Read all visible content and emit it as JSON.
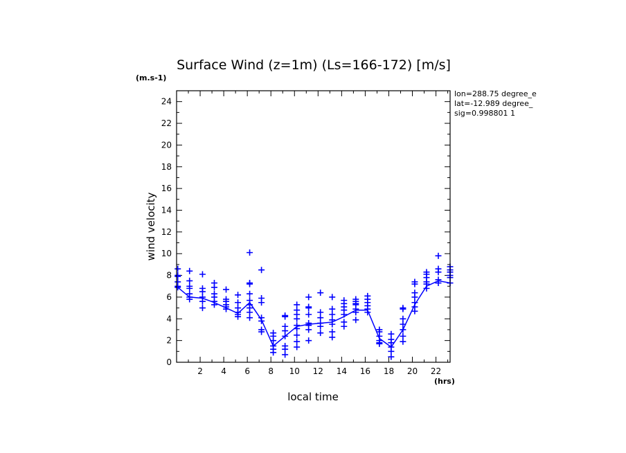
{
  "chart_data": {
    "type": "scatter",
    "title": "Surface Wind (z=1m) (Ls=166-172) [m/s]",
    "y_unit": "(m.s-1)",
    "x_unit": "(hrs)",
    "xlabel": "local time",
    "ylabel": "wind velocity",
    "xlim": [
      0,
      23.2
    ],
    "ylim": [
      0,
      25
    ],
    "xticks": [
      2,
      4,
      6,
      8,
      10,
      12,
      14,
      16,
      18,
      20,
      22
    ],
    "yticks": [
      0,
      2,
      4,
      6,
      8,
      10,
      12,
      14,
      16,
      18,
      20,
      22,
      24
    ],
    "info_lines": [
      "lon=288.75 degree_e",
      "lat=-12.989 degree_",
      "sig=0.998801 1"
    ],
    "mean_line": {
      "x": [
        0.1,
        1.1,
        2.2,
        3.2,
        4.2,
        5.2,
        6.2,
        7.2,
        8.2,
        9.2,
        10.2,
        11.2,
        12.2,
        13.2,
        14.2,
        15.2,
        16.2,
        17.2,
        18.2,
        19.2,
        20.2,
        21.2,
        22.2,
        23.2
      ],
      "y": [
        6.9,
        6.0,
        5.9,
        5.5,
        5.0,
        4.5,
        5.5,
        3.9,
        1.5,
        2.4,
        3.3,
        3.5,
        3.6,
        3.7,
        4.2,
        4.8,
        4.8,
        2.2,
        1.4,
        3.0,
        5.3,
        7.0,
        7.5,
        7.3
      ]
    },
    "points": {
      "x": [
        0.1,
        1.1,
        2.2,
        3.2,
        4.2,
        5.2,
        6.2,
        7.2,
        8.2,
        9.2,
        10.2,
        11.2,
        12.2,
        13.2,
        14.2,
        15.2,
        16.2,
        17.2,
        18.2,
        19.2,
        20.2,
        21.2,
        22.2,
        23.2
      ],
      "y_sets": [
        [
          8.6,
          8.0,
          7.9,
          7.4,
          7.0,
          6.9
        ],
        [
          8.4,
          7.5,
          7.0,
          6.8,
          6.3,
          6.0,
          5.8
        ],
        [
          8.1,
          6.8,
          6.5,
          6.0,
          5.6,
          5.0
        ],
        [
          7.3,
          6.9,
          6.3,
          6.0,
          5.6,
          5.3
        ],
        [
          6.7,
          5.8,
          5.6,
          5.3,
          5.1,
          4.9
        ],
        [
          6.2,
          5.5,
          5.0,
          4.6,
          4.4,
          4.2
        ],
        [
          10.1,
          7.3,
          7.2,
          6.3,
          5.7,
          5.3,
          5.0,
          4.6,
          4.1
        ],
        [
          8.5,
          5.9,
          5.5,
          4.1,
          3.8,
          3.0,
          2.8
        ],
        [
          2.7,
          2.4,
          2.0,
          1.5,
          1.2,
          0.9
        ],
        [
          4.3,
          4.2,
          3.3,
          2.9,
          2.4,
          1.5,
          1.2,
          0.7
        ],
        [
          5.3,
          4.8,
          4.4,
          4.0,
          3.4,
          3.1,
          2.5,
          1.9,
          1.4
        ],
        [
          6.0,
          5.1,
          5.0,
          4.4,
          3.6,
          3.4,
          3.0,
          2.0
        ],
        [
          6.4,
          4.6,
          4.1,
          3.6,
          3.3,
          2.7
        ],
        [
          6.0,
          4.9,
          4.4,
          3.9,
          3.5,
          2.8,
          2.3
        ],
        [
          5.7,
          5.4,
          5.1,
          4.8,
          4.4,
          3.7,
          3.3
        ],
        [
          5.8,
          5.6,
          5.4,
          5.3,
          4.9,
          4.6,
          3.9
        ],
        [
          6.1,
          5.8,
          5.5,
          5.2,
          4.9,
          4.6
        ],
        [
          3.0,
          2.8,
          2.4,
          2.0,
          1.8,
          1.7
        ],
        [
          2.6,
          2.1,
          1.8,
          1.4,
          1.0,
          0.5
        ],
        [
          5.0,
          4.9,
          4.0,
          3.5,
          3.0,
          2.4,
          1.9
        ],
        [
          7.4,
          7.2,
          6.4,
          6.0,
          5.5,
          5.1,
          4.7
        ],
        [
          8.3,
          8.1,
          7.8,
          7.4,
          7.2,
          6.8
        ],
        [
          9.8,
          8.6,
          8.3,
          7.6,
          7.3
        ],
        [
          8.8,
          8.5,
          8.3,
          8.0,
          7.8,
          7.3
        ]
      ]
    }
  }
}
